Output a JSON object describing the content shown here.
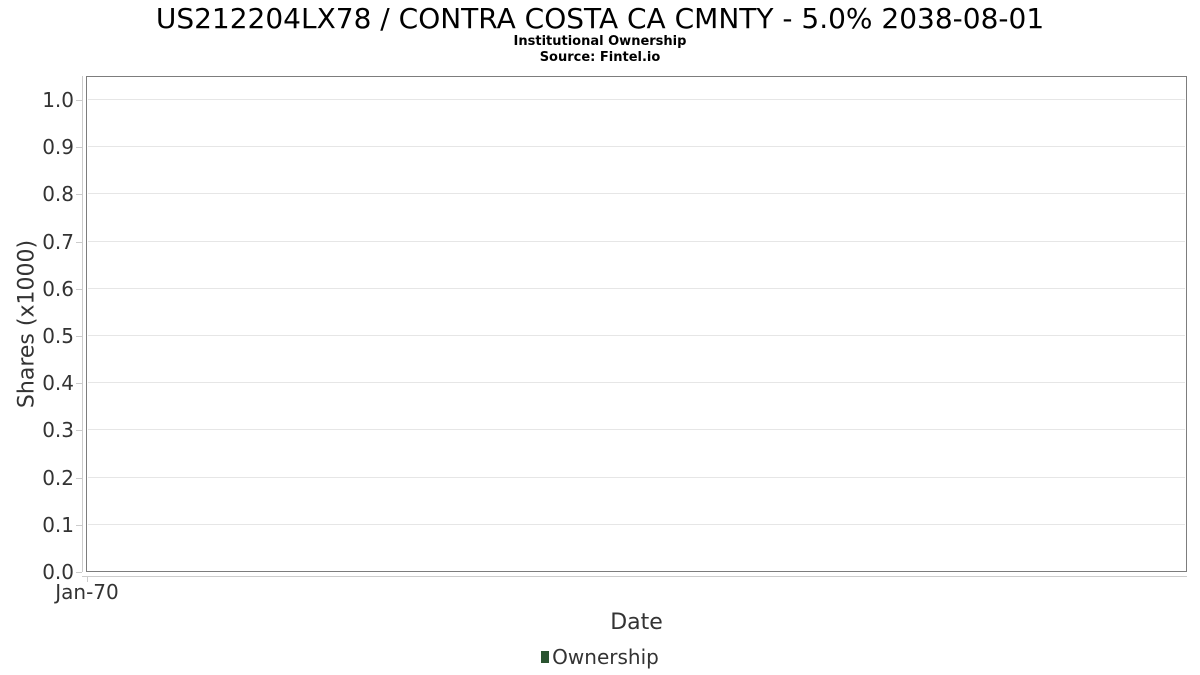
{
  "header": {
    "title": "US212204LX78 / CONTRA COSTA CA CMNTY - 5.0% 2038-08-01",
    "subtitle": "Institutional Ownership",
    "source": "Source: Fintel.io"
  },
  "chart_data": {
    "type": "line",
    "title": "US212204LX78 / CONTRA COSTA CA CMNTY - 5.0% 2038-08-01",
    "subtitle": "Institutional Ownership",
    "source": "Source: Fintel.io",
    "xlabel": "Date",
    "ylabel": "Shares (x1000)",
    "ylim": [
      0.0,
      1.05
    ],
    "yticks": [
      0.0,
      0.1,
      0.2,
      0.3,
      0.4,
      0.5,
      0.6,
      0.7,
      0.8,
      0.9,
      1.0
    ],
    "ytick_labels": [
      "0.0",
      "0.1",
      "0.2",
      "0.3",
      "0.4",
      "0.5",
      "0.6",
      "0.7",
      "0.8",
      "0.9",
      "1.0"
    ],
    "xtick_labels": [
      "Jan-70"
    ],
    "grid": true,
    "legend_position": "bottom",
    "series": [
      {
        "name": "Ownership",
        "color": "#2a5430",
        "x": [],
        "values": []
      }
    ]
  },
  "legend": {
    "items": [
      {
        "label": "Ownership",
        "color": "#2a5430"
      }
    ]
  },
  "colors": {
    "plot_border": "#7d7d7d",
    "gridline": "#e6e6e6",
    "axis_line": "#cccccc",
    "tick_text": "#333333",
    "title_text": "#000000",
    "legend_marker": "#2a5430"
  }
}
